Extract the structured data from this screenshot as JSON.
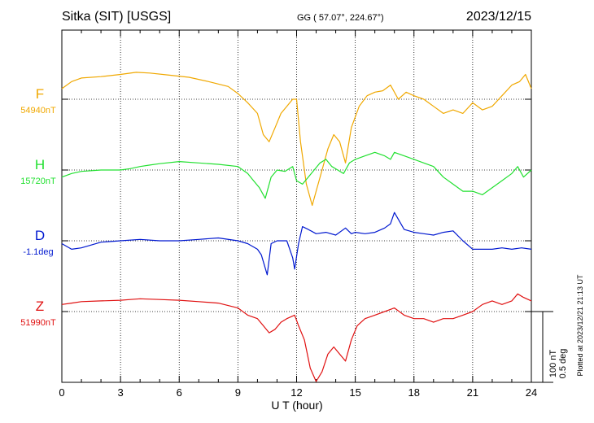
{
  "header": {
    "station": "Sitka (SIT)  [USGS]",
    "coords": "GG ( 57.07°, 224.67°)",
    "date": "2023/12/15"
  },
  "footer": {
    "xlabel": "U T (hour)",
    "plotted_at": "Plotted at 2023/12/21 21:13 UT"
  },
  "scale_bar": {
    "label_nt": "100 nT",
    "label_deg": "0.5 deg"
  },
  "chart_data": {
    "type": "line",
    "xlabel": "U T (hour)",
    "xlim": [
      0,
      24
    ],
    "x_ticks": [
      "0",
      "3",
      "6",
      "9",
      "12",
      "15",
      "18",
      "21",
      "24"
    ],
    "grid": true,
    "series": [
      {
        "name": "F",
        "baseline": "54940nT",
        "color": "#f0a800",
        "x": [
          0,
          0.5,
          1,
          2,
          3,
          3.8,
          4.5,
          5.5,
          6.5,
          7.5,
          8.5,
          9.0,
          9.5,
          10.0,
          10.3,
          10.6,
          10.9,
          11.2,
          11.5,
          11.8,
          12.0,
          12.2,
          12.5,
          12.8,
          13.0,
          13.3,
          13.6,
          13.9,
          14.2,
          14.5,
          14.8,
          15.2,
          15.6,
          16.0,
          16.4,
          16.8,
          17.2,
          17.6,
          18.0,
          18.5,
          19.0,
          19.5,
          20.0,
          20.5,
          21.0,
          21.5,
          22.0,
          22.5,
          23.0,
          23.4,
          23.7,
          24
        ],
        "y": [
          15,
          25,
          30,
          32,
          35,
          38,
          37,
          34,
          31,
          25,
          18,
          8,
          -5,
          -20,
          -50,
          -60,
          -40,
          -20,
          -10,
          0,
          0,
          -60,
          -120,
          -150,
          -130,
          -100,
          -70,
          -50,
          -60,
          -90,
          -40,
          -10,
          5,
          10,
          12,
          20,
          0,
          10,
          5,
          0,
          -10,
          -20,
          -15,
          -20,
          -5,
          -15,
          -10,
          5,
          20,
          25,
          35,
          15
        ]
      },
      {
        "name": "H",
        "baseline": "15720nT",
        "color": "#22e030",
        "x": [
          0,
          0.5,
          1,
          2,
          3,
          3.5,
          4,
          4.5,
          5,
          6,
          7,
          8,
          9,
          9.5,
          9.8,
          10.1,
          10.4,
          10.7,
          11,
          11.4,
          11.8,
          12.0,
          12.3,
          12.6,
          12.9,
          13.2,
          13.5,
          13.8,
          14.1,
          14.4,
          14.7,
          15,
          15.5,
          16,
          16.5,
          16.8,
          17,
          17.5,
          18,
          18.5,
          19,
          19.5,
          20,
          20.5,
          21,
          21.5,
          22,
          22.5,
          23,
          23.3,
          23.6,
          24
        ],
        "y": [
          -10,
          -5,
          -2,
          0,
          0,
          2,
          5,
          7,
          9,
          12,
          10,
          8,
          5,
          -5,
          -15,
          -25,
          -40,
          -10,
          0,
          -2,
          5,
          -15,
          -20,
          -10,
          0,
          10,
          15,
          5,
          0,
          -5,
          10,
          15,
          20,
          25,
          20,
          15,
          25,
          20,
          15,
          10,
          5,
          -10,
          -20,
          -30,
          -30,
          -35,
          -25,
          -15,
          -5,
          5,
          -10,
          0
        ]
      },
      {
        "name": "D",
        "baseline": "-1.1deg",
        "color": "#0018d0",
        "x": [
          0,
          0.5,
          1,
          1.5,
          2,
          3,
          4,
          5,
          6,
          7,
          8,
          9,
          9.5,
          10,
          10.2,
          10.5,
          10.7,
          11,
          11.5,
          11.8,
          11.9,
          12.1,
          12.3,
          12.6,
          13,
          13.5,
          14,
          14.5,
          14.8,
          15,
          15.5,
          16,
          16.5,
          16.8,
          17,
          17.5,
          18,
          18.5,
          19,
          19.5,
          20,
          20.5,
          21,
          21.5,
          22,
          22.5,
          23,
          23.5,
          24
        ],
        "y": [
          -0.02,
          -0.06,
          -0.05,
          -0.03,
          -0.01,
          0.0,
          0.01,
          0.0,
          0.0,
          0.01,
          0.02,
          0.0,
          -0.02,
          -0.06,
          -0.1,
          -0.24,
          -0.02,
          0.0,
          0.0,
          -0.12,
          -0.2,
          -0.02,
          0.1,
          0.08,
          0.05,
          0.06,
          0.04,
          0.09,
          0.05,
          0.06,
          0.05,
          0.06,
          0.09,
          0.12,
          0.2,
          0.08,
          0.06,
          0.05,
          0.04,
          0.06,
          0.07,
          0.0,
          -0.06,
          -0.06,
          -0.06,
          -0.05,
          -0.06,
          -0.05,
          -0.06
        ]
      },
      {
        "name": "Z",
        "baseline": "51990nT",
        "color": "#e01010",
        "x": [
          0,
          0.5,
          1,
          2,
          3,
          3.5,
          4,
          5,
          6,
          7,
          8,
          9,
          9.5,
          10,
          10.3,
          10.6,
          10.9,
          11.2,
          11.5,
          11.9,
          12.1,
          12.4,
          12.7,
          13.0,
          13.3,
          13.6,
          13.9,
          14.2,
          14.5,
          14.8,
          15.1,
          15.5,
          16,
          16.5,
          17,
          17.5,
          18,
          18.5,
          19,
          19.5,
          20,
          20.5,
          21,
          21.5,
          22,
          22.5,
          23,
          23.3,
          23.6,
          24
        ],
        "y": [
          10,
          12,
          14,
          15,
          16,
          17,
          18,
          17,
          16,
          14,
          12,
          5,
          -5,
          -10,
          -20,
          -30,
          -25,
          -15,
          -10,
          -5,
          -20,
          -40,
          -80,
          -110,
          -85,
          -60,
          -50,
          -60,
          -70,
          -40,
          -20,
          -10,
          -5,
          0,
          5,
          -5,
          -10,
          -10,
          -15,
          -10,
          -10,
          -5,
          0,
          10,
          15,
          10,
          15,
          25,
          20,
          15
        ]
      }
    ],
    "ylim_nt": [
      -160,
      50
    ],
    "ylim_deg_per_100nt": 0.5
  }
}
